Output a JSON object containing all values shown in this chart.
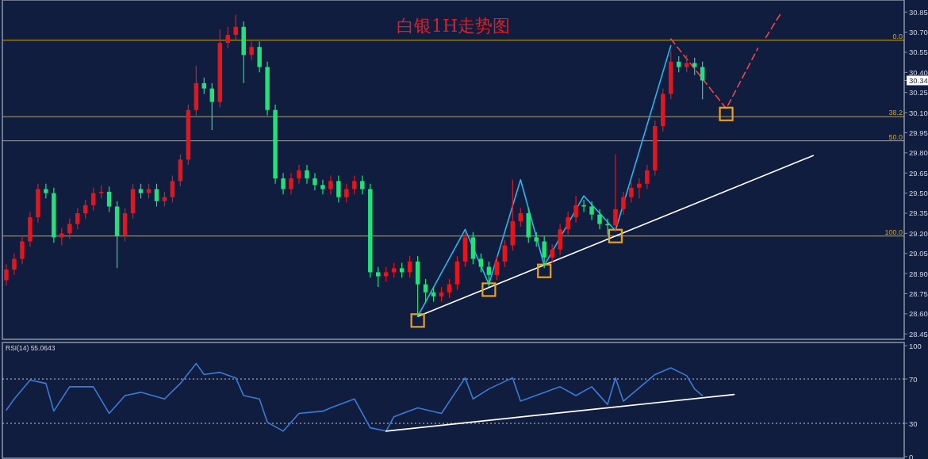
{
  "chart_data": [
    {
      "type": "candlestick",
      "title": "白银1H走势图",
      "categories": [
        null,
        null,
        null,
        null,
        null,
        null,
        null,
        null,
        null,
        null,
        null,
        null,
        null,
        null,
        null,
        null,
        null,
        null,
        null,
        null,
        null,
        null,
        null,
        null,
        null,
        null,
        null,
        null,
        null,
        null,
        null,
        null,
        null,
        null,
        null,
        null,
        null,
        null,
        null,
        null,
        null,
        null,
        null,
        null,
        null,
        null,
        null,
        null,
        null,
        null,
        null,
        null,
        null,
        null,
        null,
        null,
        null,
        null,
        null,
        null,
        null,
        null,
        null,
        null,
        null,
        null,
        null,
        null,
        null,
        null,
        null,
        null,
        null,
        null,
        null,
        null,
        null,
        null,
        null,
        null,
        null,
        null,
        null,
        null,
        null,
        null,
        null,
        null,
        null,
        null,
        null,
        null,
        null,
        null,
        null,
        null,
        null,
        null,
        null,
        null,
        null,
        null,
        null,
        null,
        null,
        null,
        null,
        null,
        null,
        null,
        null,
        null,
        null,
        null
      ],
      "ohlc": [
        [
          28.85,
          28.97,
          28.81,
          28.93
        ],
        [
          28.93,
          29.05,
          28.89,
          29.01
        ],
        [
          29.01,
          29.18,
          28.97,
          29.14
        ],
        [
          29.14,
          29.36,
          29.1,
          29.32
        ],
        [
          29.32,
          29.57,
          29.28,
          29.53
        ],
        [
          29.53,
          29.57,
          29.46,
          29.5
        ],
        [
          29.5,
          29.54,
          29.13,
          29.17
        ],
        [
          29.17,
          29.24,
          29.11,
          29.2
        ],
        [
          29.2,
          29.31,
          29.16,
          29.27
        ],
        [
          29.27,
          29.39,
          29.23,
          29.35
        ],
        [
          29.35,
          29.45,
          29.31,
          29.41
        ],
        [
          29.41,
          29.54,
          29.37,
          29.5
        ],
        [
          29.5,
          29.56,
          29.46,
          29.51
        ],
        [
          29.51,
          29.55,
          29.36,
          29.4
        ],
        [
          29.4,
          29.44,
          28.94,
          29.18
        ],
        [
          29.18,
          29.39,
          29.14,
          29.35
        ],
        [
          29.35,
          29.57,
          29.31,
          29.53
        ],
        [
          29.53,
          29.57,
          29.46,
          29.5
        ],
        [
          29.5,
          29.57,
          29.46,
          29.53
        ],
        [
          29.53,
          29.57,
          29.4,
          29.44
        ],
        [
          29.44,
          29.51,
          29.4,
          29.47
        ],
        [
          29.47,
          29.63,
          29.43,
          29.59
        ],
        [
          29.59,
          29.79,
          29.55,
          29.75
        ],
        [
          29.75,
          30.16,
          29.71,
          30.12
        ],
        [
          30.12,
          30.45,
          30.08,
          30.32
        ],
        [
          30.32,
          30.36,
          30.24,
          30.28
        ],
        [
          30.28,
          30.32,
          29.97,
          30.18
        ],
        [
          30.18,
          30.72,
          30.14,
          30.62
        ],
        [
          30.62,
          30.74,
          30.58,
          30.68
        ],
        [
          30.68,
          30.83,
          30.64,
          30.74
        ],
        [
          30.74,
          30.78,
          30.32,
          30.53
        ],
        [
          30.53,
          30.63,
          30.49,
          30.59
        ],
        [
          30.59,
          30.63,
          30.4,
          30.44
        ],
        [
          30.44,
          30.48,
          30.08,
          30.12
        ],
        [
          30.12,
          30.16,
          29.57,
          29.61
        ],
        [
          29.61,
          29.65,
          29.49,
          29.53
        ],
        [
          29.53,
          29.65,
          29.49,
          29.61
        ],
        [
          29.61,
          29.71,
          29.57,
          29.67
        ],
        [
          29.67,
          29.71,
          29.57,
          29.61
        ],
        [
          29.61,
          29.65,
          29.52,
          29.56
        ],
        [
          29.56,
          29.6,
          29.49,
          29.53
        ],
        [
          29.53,
          29.63,
          29.49,
          29.59
        ],
        [
          29.59,
          29.63,
          29.43,
          29.47
        ],
        [
          29.47,
          29.57,
          29.43,
          29.53
        ],
        [
          29.53,
          29.63,
          29.49,
          29.59
        ],
        [
          29.59,
          29.63,
          29.49,
          29.53
        ],
        [
          29.53,
          29.57,
          28.87,
          28.91
        ],
        [
          28.91,
          28.95,
          28.8,
          28.88
        ],
        [
          28.88,
          28.95,
          28.84,
          28.91
        ],
        [
          28.91,
          28.98,
          28.87,
          28.94
        ],
        [
          28.94,
          28.98,
          28.87,
          28.91
        ],
        [
          28.91,
          29.03,
          28.87,
          28.99
        ],
        [
          28.99,
          29.03,
          28.58,
          28.82
        ],
        [
          28.82,
          28.86,
          28.68,
          28.76
        ],
        [
          28.76,
          28.8,
          28.69,
          28.73
        ],
        [
          28.73,
          28.8,
          28.69,
          28.76
        ],
        [
          28.76,
          28.86,
          28.72,
          28.82
        ],
        [
          28.82,
          29.03,
          28.78,
          28.99
        ],
        [
          28.99,
          29.21,
          28.95,
          29.17
        ],
        [
          29.17,
          29.21,
          28.97,
          29.01
        ],
        [
          29.01,
          29.05,
          28.91,
          28.95
        ],
        [
          28.95,
          28.99,
          28.8,
          28.89
        ],
        [
          28.89,
          29.03,
          28.85,
          28.99
        ],
        [
          28.99,
          29.15,
          28.95,
          29.11
        ],
        [
          29.11,
          29.6,
          29.07,
          29.29
        ],
        [
          29.29,
          29.39,
          29.25,
          29.35
        ],
        [
          29.35,
          29.39,
          29.13,
          29.17
        ],
        [
          29.17,
          29.21,
          29.1,
          29.14
        ],
        [
          29.14,
          29.18,
          28.94,
          29.02
        ],
        [
          29.02,
          29.12,
          28.98,
          29.08
        ],
        [
          29.08,
          29.27,
          29.04,
          29.23
        ],
        [
          29.23,
          29.36,
          29.19,
          29.32
        ],
        [
          29.32,
          29.48,
          29.28,
          29.41
        ],
        [
          29.41,
          29.45,
          29.36,
          29.4
        ],
        [
          29.4,
          29.44,
          29.3,
          29.34
        ],
        [
          29.34,
          29.38,
          29.23,
          29.27
        ],
        [
          29.27,
          29.31,
          29.19,
          29.26
        ],
        [
          29.26,
          29.79,
          29.22,
          29.38
        ],
        [
          29.38,
          29.51,
          29.34,
          29.47
        ],
        [
          29.47,
          29.58,
          29.43,
          29.54
        ],
        [
          29.54,
          29.61,
          29.46,
          29.57
        ],
        [
          29.57,
          29.71,
          29.53,
          29.67
        ],
        [
          29.67,
          30.04,
          29.63,
          30.0
        ],
        [
          30.0,
          30.28,
          29.96,
          30.24
        ],
        [
          30.24,
          30.56,
          30.2,
          30.48
        ],
        [
          30.48,
          30.52,
          30.4,
          30.44
        ],
        [
          30.44,
          30.53,
          30.4,
          30.47
        ],
        [
          30.47,
          30.51,
          30.38,
          30.44
        ],
        [
          30.44,
          30.48,
          30.2,
          30.34
        ],
        null,
        null,
        null,
        null,
        null,
        null,
        null,
        null,
        null,
        null,
        null,
        null,
        null,
        null,
        null,
        null,
        null,
        null,
        null,
        null,
        null,
        null,
        null,
        null,
        null
      ],
      "series": [
        {
          "type": "line",
          "color": "#ffffff",
          "values": [
            null,
            null,
            null,
            null,
            null,
            null,
            null,
            null,
            null,
            null,
            null,
            null,
            null,
            null,
            null,
            null,
            null,
            null,
            null,
            null,
            null,
            null,
            null,
            null,
            null,
            null,
            null,
            null,
            null,
            null,
            null,
            null,
            null,
            null,
            null,
            null,
            null,
            null,
            null,
            null,
            null,
            null,
            null,
            null,
            null,
            null,
            null,
            null,
            null,
            null,
            null,
            null,
            28.58,
            null,
            null,
            null,
            null,
            null,
            null,
            null,
            null,
            null,
            null,
            null,
            null,
            null,
            null,
            null,
            null,
            null,
            null,
            null,
            null,
            null,
            null,
            null,
            null,
            null,
            null,
            null,
            null,
            null,
            null,
            null,
            null,
            null,
            null,
            null,
            null,
            null,
            null,
            null,
            null,
            null,
            null,
            null,
            null,
            null,
            null,
            null,
            null,
            null,
            29.78,
            null,
            null,
            null,
            null,
            null,
            null,
            null,
            null,
            null,
            null,
            null
          ]
        },
        {
          "type": "line",
          "color": "#29b6f0",
          "values": [
            null,
            null,
            null,
            null,
            null,
            null,
            null,
            null,
            null,
            null,
            null,
            null,
            null,
            null,
            null,
            null,
            null,
            null,
            null,
            null,
            null,
            null,
            null,
            null,
            null,
            null,
            null,
            null,
            null,
            null,
            null,
            null,
            null,
            null,
            null,
            null,
            null,
            null,
            null,
            null,
            null,
            null,
            null,
            null,
            null,
            null,
            null,
            null,
            null,
            null,
            null,
            null,
            28.58,
            null,
            null,
            null,
            null,
            null,
            29.23,
            null,
            null,
            28.82,
            null,
            null,
            null,
            29.6,
            null,
            null,
            28.96,
            null,
            null,
            null,
            null,
            29.48,
            null,
            null,
            null,
            29.22,
            null,
            null,
            null,
            null,
            null,
            null,
            30.6,
            null,
            null,
            null,
            null,
            null,
            null,
            null,
            null,
            null,
            null,
            null,
            null,
            null,
            null,
            null,
            null,
            null,
            null,
            null,
            null,
            null,
            null,
            null,
            null,
            null,
            null,
            null,
            null,
            null
          ]
        },
        {
          "type": "line",
          "color": "#f04848",
          "line_style": "dashed",
          "values": [
            null,
            null,
            null,
            null,
            null,
            null,
            null,
            null,
            null,
            null,
            null,
            null,
            null,
            null,
            null,
            null,
            null,
            null,
            null,
            null,
            null,
            null,
            null,
            null,
            null,
            null,
            null,
            null,
            null,
            null,
            null,
            null,
            null,
            null,
            null,
            null,
            null,
            null,
            null,
            null,
            null,
            null,
            null,
            null,
            null,
            null,
            null,
            null,
            null,
            null,
            null,
            null,
            null,
            null,
            null,
            null,
            null,
            null,
            null,
            null,
            null,
            null,
            null,
            null,
            null,
            null,
            null,
            null,
            null,
            null,
            null,
            null,
            null,
            null,
            null,
            null,
            null,
            null,
            null,
            null,
            null,
            null,
            null,
            null,
            30.65,
            null,
            null,
            null,
            null,
            null,
            null,
            30.13,
            null,
            null,
            null,
            30.58,
            null,
            null,
            null,
            null,
            null,
            null,
            null,
            null,
            null,
            null,
            null,
            null,
            null,
            null,
            null,
            null,
            null,
            null
          ]
        },
        {
          "type": "line",
          "color": "#f04848",
          "line_style": "dashed",
          "values": [
            null,
            null,
            null,
            null,
            null,
            null,
            null,
            null,
            null,
            null,
            null,
            null,
            null,
            null,
            null,
            null,
            null,
            null,
            null,
            null,
            null,
            null,
            null,
            null,
            null,
            null,
            null,
            null,
            null,
            null,
            null,
            null,
            null,
            null,
            null,
            null,
            null,
            null,
            null,
            null,
            null,
            null,
            null,
            null,
            null,
            null,
            null,
            null,
            null,
            null,
            null,
            null,
            null,
            null,
            null,
            null,
            null,
            null,
            null,
            null,
            null,
            null,
            null,
            null,
            null,
            null,
            null,
            null,
            null,
            null,
            null,
            null,
            null,
            null,
            null,
            null,
            null,
            null,
            null,
            null,
            null,
            null,
            null,
            null,
            null,
            null,
            null,
            null,
            null,
            null,
            null,
            null,
            null,
            null,
            null,
            null,
            30.66,
            null,
            30.85,
            null,
            null,
            null,
            null,
            null,
            null,
            null,
            null,
            null,
            null,
            null,
            null,
            null,
            null,
            null
          ]
        },
        {
          "type": "scatter",
          "color": "#e8a317",
          "marker": "square",
          "values": [
            null,
            null,
            null,
            null,
            null,
            null,
            null,
            null,
            null,
            null,
            null,
            null,
            null,
            null,
            null,
            null,
            null,
            null,
            null,
            null,
            null,
            null,
            null,
            null,
            null,
            null,
            null,
            null,
            null,
            null,
            null,
            null,
            null,
            null,
            null,
            null,
            null,
            null,
            null,
            null,
            null,
            null,
            null,
            null,
            null,
            null,
            null,
            null,
            null,
            null,
            null,
            null,
            28.55,
            null,
            null,
            null,
            null,
            null,
            null,
            null,
            null,
            28.78,
            null,
            null,
            null,
            null,
            null,
            null,
            28.92,
            null,
            null,
            null,
            null,
            null,
            null,
            null,
            null,
            29.18,
            null,
            null,
            null,
            null,
            null,
            null,
            null,
            null,
            null,
            null,
            null,
            null,
            null,
            30.09,
            null,
            null,
            null,
            null,
            null,
            null,
            null,
            null,
            null,
            null,
            null,
            null,
            null,
            null,
            null,
            null,
            null,
            null,
            null,
            null,
            null,
            null
          ]
        }
      ],
      "ylim": [
        28.41,
        30.94
      ],
      "yticks": [
        28.45,
        {
          "value": 28.6,
          "label": "28.60"
        },
        28.75,
        {
          "value": 28.9,
          "label": "28.90"
        },
        29.05,
        {
          "value": 29.2,
          "label": "29.20"
        },
        29.35,
        {
          "value": 29.5,
          "label": "29.50"
        },
        29.65,
        {
          "value": 29.8,
          "label": "29.80"
        },
        29.95,
        {
          "value": 30.1,
          "label": "30.10"
        },
        30.25,
        {
          "value": 30.4,
          "label": "30.40"
        },
        30.55,
        {
          "value": 30.7,
          "label": "30.70"
        },
        30.85,
        30.34
      ],
      "ref_lines": [
        {
          "axis": "y",
          "value": 30.64,
          "color": "#c8a820"
        },
        {
          "axis": "y",
          "value": 30.07,
          "color": "#c8a820"
        },
        {
          "axis": "y",
          "value": 29.89,
          "color": "#c8a820"
        },
        {
          "axis": "y",
          "value": 29.18,
          "color": "#c8a820"
        }
      ],
      "annotations": [
        {
          "text": "0.0",
          "y": 30.64
        },
        {
          "text": "38.2",
          "y": 30.07
        },
        {
          "text": "50.0",
          "y": 29.89
        },
        {
          "text": "100.0",
          "y": 29.18
        }
      ],
      "tick_labels": "y"
    },
    {
      "type": "line",
      "title": "RSI(14) 55.0643",
      "categories": [
        null,
        null,
        null,
        null,
        null,
        null,
        null,
        null,
        null,
        null,
        null,
        null,
        null,
        null,
        null,
        null,
        null,
        null,
        null,
        null,
        null,
        null,
        null,
        null,
        null,
        null,
        null,
        null,
        null,
        null,
        null,
        null,
        null,
        null,
        null,
        null,
        null,
        null,
        null,
        null,
        null,
        null,
        null,
        null,
        null,
        null,
        null,
        null,
        null,
        null,
        null,
        null,
        null,
        null,
        null,
        null,
        null,
        null,
        null,
        null,
        null,
        null,
        null,
        null,
        null,
        null,
        null,
        null,
        null,
        null,
        null,
        null,
        null,
        null,
        null,
        null,
        null,
        null,
        null,
        null,
        null,
        null,
        null,
        null,
        null,
        null,
        null,
        null,
        null,
        null,
        null,
        null,
        null,
        null,
        null,
        null,
        null,
        null,
        null,
        null,
        null,
        null,
        null,
        null,
        null,
        null,
        null,
        null,
        null,
        null,
        null,
        null,
        null,
        null
      ],
      "series": [
        {
          "color": "#3a7bd5",
          "values": [
            42,
            52,
            null,
            69,
            null,
            66,
            41,
            null,
            63,
            null,
            null,
            63,
            null,
            39,
            null,
            55,
            null,
            58,
            null,
            null,
            52,
            null,
            66,
            null,
            84,
            74,
            null,
            76,
            null,
            71,
            55,
            null,
            52,
            31,
            null,
            23,
            null,
            39,
            null,
            null,
            41,
            44,
            null,
            null,
            52,
            null,
            26,
            null,
            23,
            36,
            null,
            null,
            44,
            null,
            null,
            39,
            null,
            null,
            71,
            52,
            null,
            61,
            null,
            null,
            71,
            50,
            null,
            null,
            null,
            null,
            63,
            null,
            55,
            null,
            63,
            null,
            47,
            71,
            50,
            null,
            null,
            null,
            74,
            null,
            80,
            null,
            73,
            61,
            55,
            null,
            null,
            null,
            null,
            null,
            null,
            null,
            null,
            null,
            null,
            null,
            null,
            null,
            null,
            null,
            null,
            null,
            null,
            null,
            null,
            null,
            null,
            null,
            null,
            null
          ]
        },
        {
          "color": "#ffffff",
          "values": [
            null,
            null,
            null,
            null,
            null,
            null,
            null,
            null,
            null,
            null,
            null,
            null,
            null,
            null,
            null,
            null,
            null,
            null,
            null,
            null,
            null,
            null,
            null,
            null,
            null,
            null,
            null,
            null,
            null,
            null,
            null,
            null,
            null,
            null,
            null,
            null,
            null,
            null,
            null,
            null,
            null,
            null,
            null,
            null,
            null,
            null,
            null,
            null,
            23,
            null,
            null,
            null,
            null,
            null,
            null,
            null,
            null,
            null,
            null,
            null,
            null,
            null,
            null,
            null,
            null,
            null,
            null,
            null,
            null,
            null,
            null,
            null,
            null,
            null,
            null,
            null,
            null,
            null,
            null,
            null,
            null,
            null,
            null,
            null,
            null,
            null,
            null,
            null,
            null,
            null,
            null,
            null,
            56,
            null,
            null,
            null,
            null,
            null,
            null,
            null,
            null,
            null,
            null,
            null,
            null,
            null,
            null,
            null,
            null,
            null,
            null,
            null,
            null,
            null
          ]
        }
      ],
      "ylim": [
        -1.4,
        102.9
      ],
      "yticks": [
        0,
        30,
        70,
        100
      ],
      "ref_lines": [
        {
          "axis": "y",
          "value": 70,
          "color": "#c0c8d8",
          "line_style": "dotted"
        },
        {
          "axis": "y",
          "value": 30,
          "color": "#c0c8d8",
          "line_style": "dotted"
        }
      ],
      "tick_labels": "y"
    }
  ]
}
